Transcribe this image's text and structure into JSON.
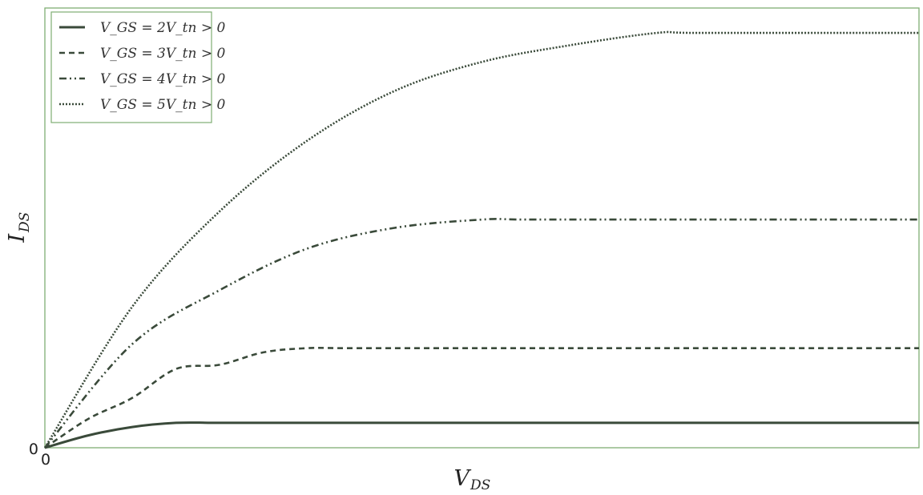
{
  "chart_data": {
    "type": "line",
    "title": "",
    "xlabel": "V",
    "xlabel_sub": "DS",
    "ylabel": "I",
    "ylabel_sub": "DS",
    "x_ticks": [
      "0"
    ],
    "y_ticks": [
      "0"
    ],
    "xlim": [
      0,
      10
    ],
    "ylim": [
      0,
      26.5
    ],
    "grid": false,
    "legend_placement": "top-left",
    "colors": {
      "frame": "#7fae73",
      "series": "#3a4a3a"
    },
    "series": [
      {
        "name": "V_GS = 2V_tn > 0",
        "vgs_multiple": 2,
        "style": "solid",
        "x": [
          0,
          0.5,
          1.0,
          1.5,
          2.0,
          3.0,
          5.0,
          7.0,
          10.0
        ],
        "y": [
          0,
          0.75,
          1.25,
          1.5,
          1.5,
          1.5,
          1.5,
          1.5,
          1.5
        ]
      },
      {
        "name": "V_GS = 3V_tn > 0",
        "vgs_multiple": 3,
        "style": "dashed",
        "x": [
          0,
          0.5,
          1.0,
          1.5,
          2.0,
          2.5,
          3.0,
          3.5,
          5.0,
          7.0,
          10.0
        ],
        "y": [
          0,
          1.75,
          3.0,
          4.75,
          5.0,
          5.75,
          6.0,
          6.0,
          6.0,
          6.0,
          6.0
        ]
      },
      {
        "name": "V_GS = 4V_tn > 0",
        "vgs_multiple": 4,
        "style": "dashdot",
        "x": [
          0,
          1.0,
          2.0,
          3.0,
          4.0,
          5.0,
          5.5,
          7.0,
          10.0
        ],
        "y": [
          0,
          6.25,
          9.5,
          12.0,
          13.25,
          13.75,
          13.75,
          13.75,
          13.75
        ]
      },
      {
        "name": "V_GS = 5V_tn > 0",
        "vgs_multiple": 5,
        "style": "dotted",
        "x": [
          0,
          1.0,
          2.0,
          3.0,
          4.0,
          5.0,
          6.0,
          7.0,
          7.5,
          10.0
        ],
        "y": [
          0,
          8.5,
          14.25,
          18.5,
          21.5,
          23.25,
          24.25,
          25.0,
          25.0,
          25.0
        ]
      }
    ]
  }
}
